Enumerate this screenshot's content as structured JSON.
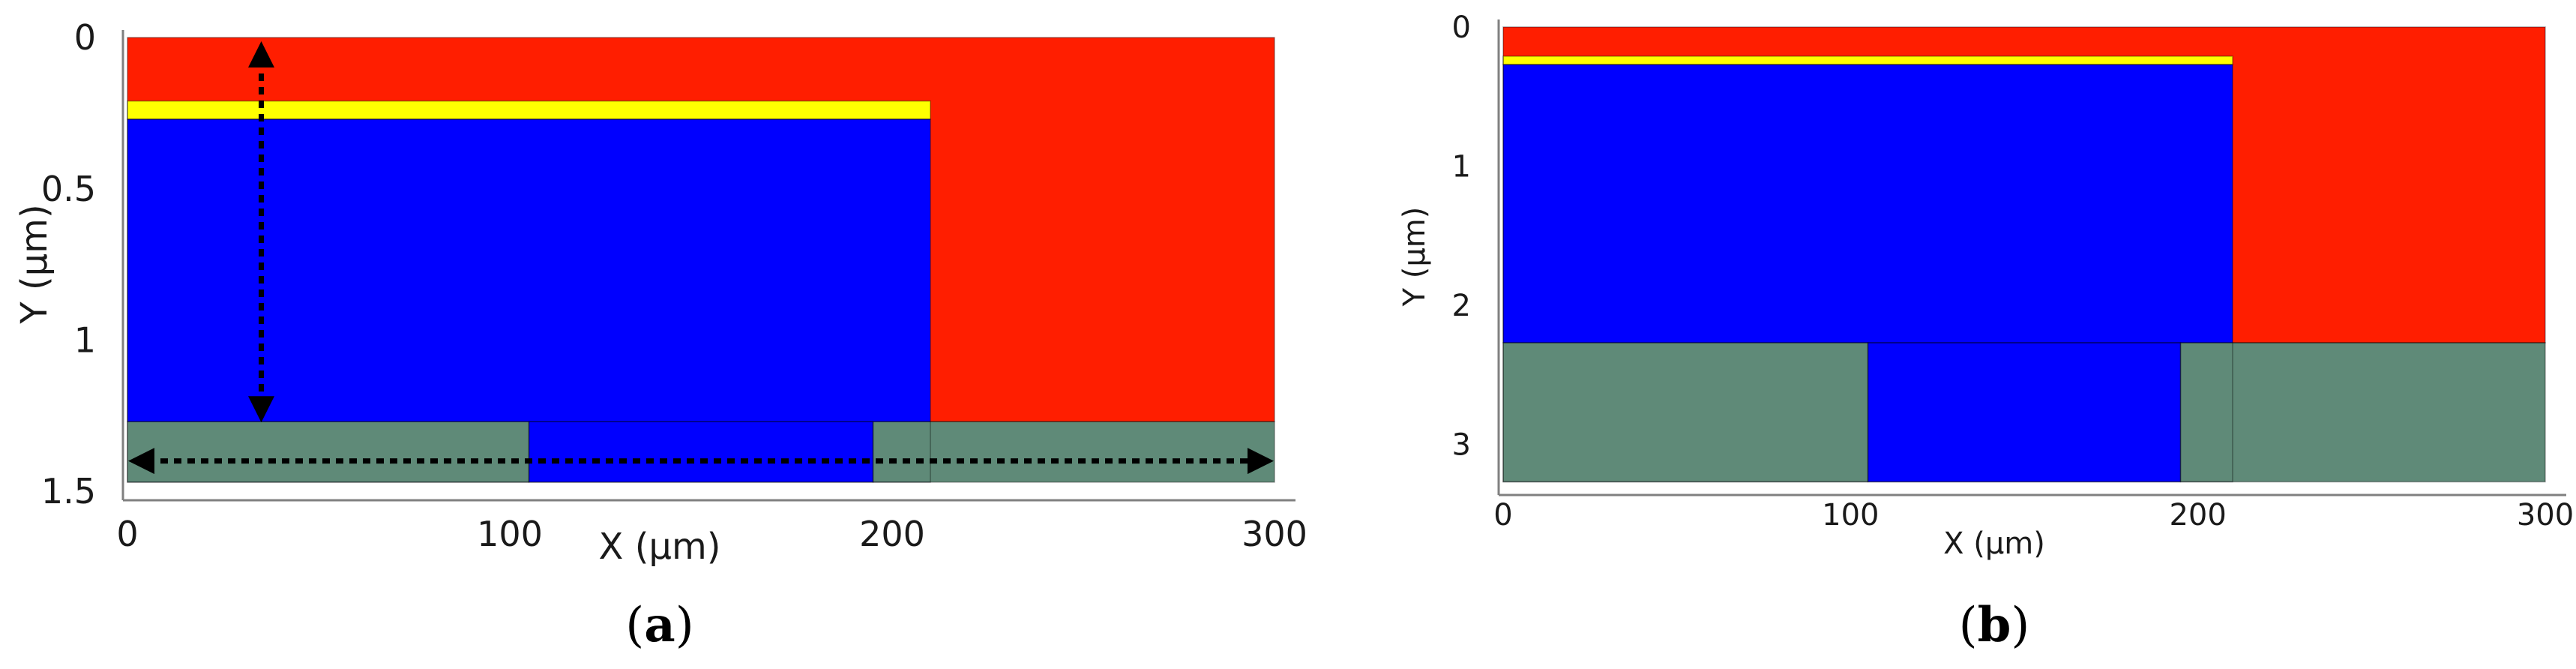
{
  "colors": {
    "background_region": "#ff1e00",
    "interface_layer": "#ffff00",
    "main_region": "#0000ff",
    "electrode": "#5f8a78",
    "axis": "#808080",
    "arrow": "#000000"
  },
  "panels": [
    {
      "id": "a",
      "label_open": "(",
      "label_letter": "a",
      "label_close": ")",
      "xlabel": "X (µm)",
      "ylabel": "Y (µm)",
      "x_range": [
        0,
        300
      ],
      "y_range": [
        0,
        1.5
      ],
      "y_inverted": true,
      "x_ticks": [
        "0",
        "100",
        "200",
        "300"
      ],
      "y_ticks": [
        "0",
        "0.5",
        "1",
        "1.5"
      ],
      "regions": [
        {
          "name": "red-region",
          "color": "background_region",
          "x0": 0,
          "x1": 300,
          "y0": 0,
          "y1": 1.27
        },
        {
          "name": "yellow-layer",
          "color": "interface_layer",
          "x0": 0,
          "x1": 210,
          "y0": 0.21,
          "y1": 0.27
        },
        {
          "name": "blue-region",
          "color": "main_region",
          "x0": 0,
          "x1": 210,
          "y0": 0.27,
          "y1": 1.47
        },
        {
          "name": "blue-gap-region",
          "color": "main_region",
          "x0": 105,
          "x1": 195,
          "y0": 1.27,
          "y1": 1.47
        },
        {
          "name": "left-electrode",
          "color": "electrode",
          "x0": 0,
          "x1": 105,
          "y0": 1.27,
          "y1": 1.47
        },
        {
          "name": "right-electrode",
          "color": "electrode",
          "x0": 195,
          "x1": 300,
          "y0": 1.27,
          "y1": 1.47
        }
      ],
      "arrows": [
        {
          "name": "vertical-dimension-arrow",
          "x0": 35,
          "y0": 0.0,
          "x1": 35,
          "y1": 1.27
        },
        {
          "name": "horizontal-dimension-arrow",
          "x0": 0,
          "y0": 1.37,
          "x1": 300,
          "y1": 1.37
        }
      ]
    },
    {
      "id": "b",
      "label_open": "(",
      "label_letter": "b",
      "label_close": ")",
      "xlabel": "X (µm)",
      "ylabel": "Y (µm)",
      "x_range": [
        0,
        300
      ],
      "y_range": [
        0,
        3.3
      ],
      "y_inverted": true,
      "x_ticks": [
        "0",
        "100",
        "200",
        "300"
      ],
      "y_ticks": [
        "0",
        "1",
        "2",
        "3"
      ],
      "regions": [
        {
          "name": "red-region",
          "color": "background_region",
          "x0": 0,
          "x1": 300,
          "y0": 0,
          "y1": 2.27
        },
        {
          "name": "yellow-layer",
          "color": "interface_layer",
          "x0": 0,
          "x1": 210,
          "y0": 0.21,
          "y1": 0.27
        },
        {
          "name": "blue-region",
          "color": "main_region",
          "x0": 0,
          "x1": 210,
          "y0": 0.27,
          "y1": 3.27
        },
        {
          "name": "blue-gap-region",
          "color": "main_region",
          "x0": 105,
          "x1": 195,
          "y0": 2.27,
          "y1": 3.27
        },
        {
          "name": "left-electrode",
          "color": "electrode",
          "x0": 0,
          "x1": 105,
          "y0": 2.27,
          "y1": 3.27
        },
        {
          "name": "right-electrode",
          "color": "electrode",
          "x0": 195,
          "x1": 300,
          "y0": 2.27,
          "y1": 3.27
        }
      ],
      "arrows": []
    }
  ]
}
